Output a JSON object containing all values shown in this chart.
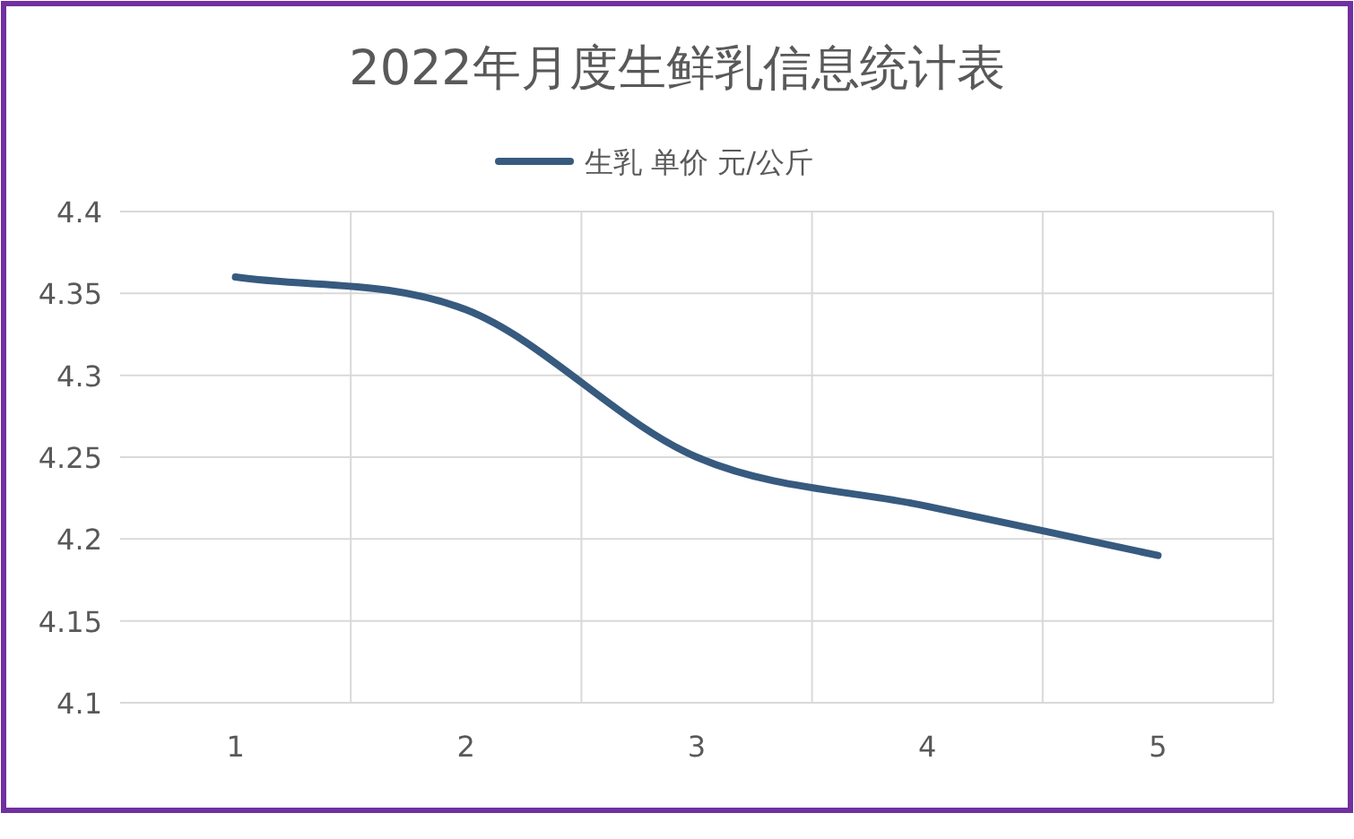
{
  "chart_data": {
    "type": "line",
    "title": "2022年月度生鲜乳信息统计表",
    "categories": [
      "1",
      "2",
      "3",
      "4",
      "5"
    ],
    "series": [
      {
        "name": "生乳 单价 元/公斤",
        "color": "#375a7f",
        "values": [
          4.36,
          4.34,
          4.25,
          4.22,
          4.19
        ]
      }
    ],
    "ylim": [
      4.1,
      4.4
    ],
    "yticks": [
      4.1,
      4.15,
      4.2,
      4.25,
      4.3,
      4.35,
      4.4
    ],
    "grid": true,
    "legend": "top",
    "marker": "none",
    "line_style": "solid"
  }
}
